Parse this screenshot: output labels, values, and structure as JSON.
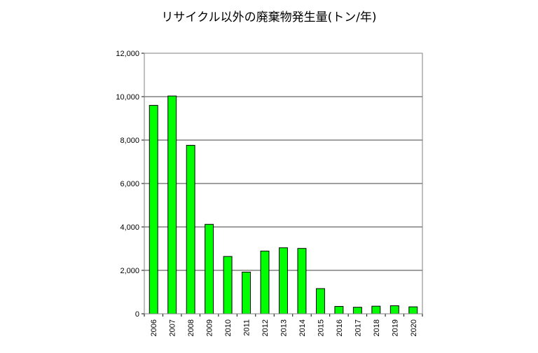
{
  "chart_data": {
    "type": "bar",
    "title": "リサイクル以外の廃棄物発生量(トン/年)",
    "xlabel": "",
    "ylabel": "",
    "categories": [
      "2006",
      "2007",
      "2008",
      "2009",
      "2010",
      "2011",
      "2012",
      "2013",
      "2014",
      "2015",
      "2016",
      "2017",
      "2018",
      "2019",
      "2020"
    ],
    "values": [
      9600,
      10030,
      7760,
      4120,
      2640,
      1920,
      2890,
      3040,
      3010,
      1160,
      340,
      300,
      350,
      370,
      320
    ],
    "ylim": [
      0,
      12000
    ],
    "yticks": [
      0,
      2000,
      4000,
      6000,
      8000,
      10000,
      12000
    ],
    "ytick_labels": [
      "0",
      "2,000",
      "4,000",
      "6,000",
      "8,000",
      "10,000",
      "12,000"
    ],
    "grid": true,
    "legend": "none",
    "colors": {
      "bar_fill": "#00ff00",
      "bar_stroke": "#000000",
      "grid": "#000000"
    }
  }
}
